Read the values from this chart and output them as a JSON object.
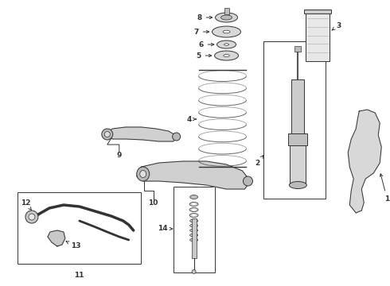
{
  "bg_color": "#ffffff",
  "lc": "#333333",
  "fig_w": 4.9,
  "fig_h": 3.6,
  "dpi": 100,
  "xlim": [
    0,
    490
  ],
  "ylim": [
    0,
    360
  ]
}
